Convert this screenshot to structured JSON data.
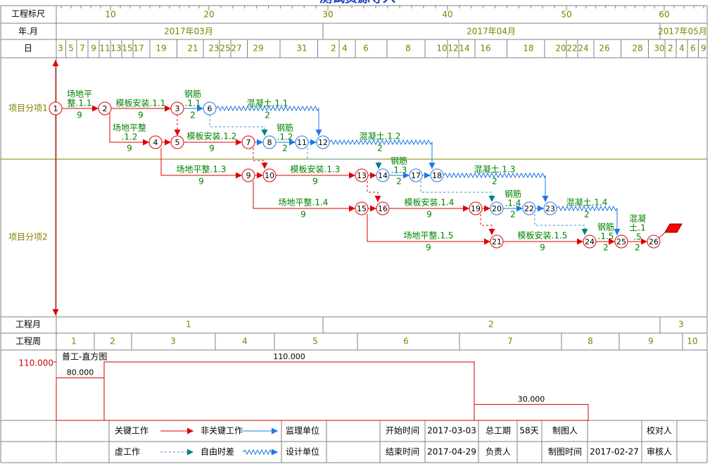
{
  "title": "测试资源导入",
  "header": {
    "ruler_label": "工程标尺",
    "ruler": [
      10,
      20,
      30,
      40,
      50,
      60
    ],
    "month_label": "年.月",
    "months": [
      "2017年03月",
      "2017年04月",
      "2017年05月"
    ],
    "day_label": "日",
    "days": [
      3,
      5,
      7,
      9,
      11,
      13,
      15,
      17,
      19,
      21,
      23,
      25,
      27,
      29,
      31,
      2,
      4,
      6,
      8,
      10,
      12,
      14,
      16,
      18,
      20,
      22,
      24,
      26,
      28,
      30,
      2,
      4,
      6,
      9
    ]
  },
  "rows": [
    "项目分项1",
    "项目分项2"
  ],
  "nodes": [
    1,
    2,
    3,
    4,
    5,
    6,
    7,
    8,
    9,
    10,
    11,
    12,
    13,
    14,
    15,
    16,
    17,
    18,
    19,
    20,
    21,
    22,
    23,
    24,
    25,
    26
  ],
  "activities": [
    {
      "name": [
        "场地平",
        "整.1.1"
      ],
      "duration": 9
    },
    {
      "name": [
        "模板安装.1.1"
      ],
      "duration": 9
    },
    {
      "name": [
        "钢筋",
        ".1.1"
      ],
      "duration": 2
    },
    {
      "name": [
        "混凝土.1.1"
      ],
      "duration": 2
    },
    {
      "name": [
        "场地平整",
        ".1.2"
      ],
      "duration": 9
    },
    {
      "name": [
        "模板安装.1.2"
      ],
      "duration": 9
    },
    {
      "name": [
        "钢筋",
        ".1.2"
      ],
      "duration": 2
    },
    {
      "name": [
        "混凝土.1.2"
      ],
      "duration": 2
    },
    {
      "name": [
        "场地平整.1.3"
      ],
      "duration": 9
    },
    {
      "name": [
        "模板安装.1.3"
      ],
      "duration": 9
    },
    {
      "name": [
        "钢筋",
        ".1.3"
      ],
      "duration": 2
    },
    {
      "name": [
        "混凝土.1.3"
      ],
      "duration": 2
    },
    {
      "name": [
        "场地平整.1.4"
      ],
      "duration": 9
    },
    {
      "name": [
        "模板安装.1.4"
      ],
      "duration": 9
    },
    {
      "name": [
        "钢筋",
        ".1.4"
      ],
      "duration": 2
    },
    {
      "name": [
        "混凝土.1.4"
      ],
      "duration": 2
    },
    {
      "name": [
        "场地平整.1.5"
      ],
      "duration": 9
    },
    {
      "name": [
        "模板安装.1.5"
      ],
      "duration": 9
    },
    {
      "name": [
        "钢筋",
        ".1.5"
      ],
      "duration": 2
    },
    {
      "name": [
        "混凝",
        "土.1",
        ".5"
      ],
      "duration": 2
    }
  ],
  "footer": {
    "month_label": "工程月",
    "months": [
      1,
      2,
      3
    ],
    "week_label": "工程周",
    "weeks": [
      1,
      2,
      3,
      4,
      5,
      6,
      7,
      8,
      9,
      10
    ]
  },
  "histogram": {
    "title": "普工-直方图",
    "ylim": [
      0,
      132.5
    ],
    "yticks": [
      {
        "value": 110,
        "label": "110.000"
      }
    ],
    "values": [
      80,
      110,
      30
    ],
    "value_labels": [
      "80.000",
      "110.000",
      "30.000"
    ],
    "color": "#d00000"
  },
  "legend": {
    "critical": "关键工作",
    "noncritical": "非关键工作",
    "supervisor": "监理单位",
    "dummy": "虚工作",
    "free_float": "自由时差",
    "designer": "设计单位"
  },
  "info": {
    "start_label": "开始时间",
    "start": "2017-03-03",
    "total_label": "总工期",
    "total": "58天",
    "drawer_label": "制图人",
    "checker_label": "校对人",
    "end_label": "结束时间",
    "end": "2017-04-29",
    "owner_label": "负责人",
    "draw_time_label": "制图时间",
    "draw_time": "2017-02-27",
    "reviewer_label": "审核人"
  }
}
